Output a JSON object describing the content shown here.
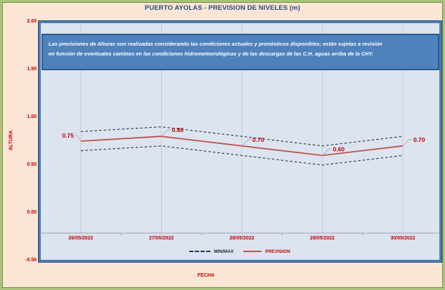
{
  "title": "PUERTO AYOLAS - PREVISION DE NIVELES (m)",
  "disclaimer": {
    "line1": "Las previsiones de Alturas son realizadas considerando las condiciones actuales y pronósticos disponibles;  están sujetas a revisión",
    "line2": "en función de eventuales cambios en las condiciones hidrometeorológicas y de las descargas de las C.H. aguas arriba de la CHY."
  },
  "legend": {
    "minmax_label": "MIN/MAX",
    "prevision_label": "PREVISION"
  },
  "colors": {
    "background": "#fbe5d5",
    "frame_green": "#a9c478",
    "frame_green_dark": "#6f9140",
    "title_navy": "#2e4b84",
    "axis_text_red": "#c00000",
    "prevision_line": "#c0504d",
    "minmax_line": "#17375e",
    "data_label_red": "#c00000",
    "disclaimer_fill": "#4f81bd",
    "disclaimer_border": "#2d5a8e",
    "plot_fill": "#dce4ef",
    "plot_border_blue": "#4a7db8",
    "gridline": "#c3cad6",
    "axis_line": "#9aa3ad",
    "leader_line": "#b3b3b3"
  },
  "chart_data": {
    "type": "line",
    "title": "PUERTO AYOLAS - PREVISION DE NIVELES (m)",
    "categories": [
      "26/05/2022",
      "27/05/2022",
      "28/05/2022",
      "29/05/2022",
      "30/05/2022"
    ],
    "series": [
      {
        "name": "MAX",
        "legend": "MIN/MAX",
        "style": "dashed",
        "values": [
          0.85,
          0.9,
          0.8,
          0.7,
          0.8
        ]
      },
      {
        "name": "PREVISION",
        "legend": "PREVISION",
        "style": "solid",
        "values": [
          0.75,
          0.8,
          0.7,
          0.6,
          0.7
        ]
      },
      {
        "name": "MIN",
        "legend": "MIN/MAX",
        "style": "dashed",
        "values": [
          0.65,
          0.7,
          0.6,
          0.5,
          0.6
        ]
      }
    ],
    "data_labels": {
      "series": "PREVISION",
      "values": [
        "0.75",
        "0.80",
        "0.70",
        "0.60",
        "0.70"
      ],
      "sides": [
        "left",
        "right",
        "right",
        "right",
        "right"
      ]
    },
    "xlabel": "FECHA",
    "ylabel": "ALTURA",
    "ylim": [
      -0.5,
      2.0
    ],
    "ytick_labels": [
      "2.00",
      "1.50",
      "1.00",
      "0.50",
      "0.00",
      "-0.50"
    ],
    "grid": "vertical-only",
    "legend_position": "bottom"
  }
}
